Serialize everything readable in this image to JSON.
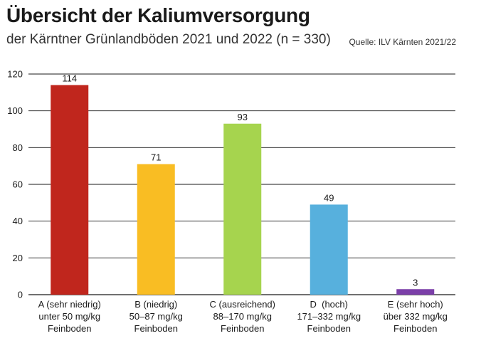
{
  "header": {
    "title": "Übersicht der Kaliumversorgung",
    "subtitle": "der Kärntner Grünlandböden 2021 und 2022 (n = 330)",
    "source": "Quelle: ILV Kärnten 2021/22"
  },
  "chart_data": {
    "type": "bar",
    "title": "Übersicht der Kaliumversorgung",
    "subtitle": "der Kärntner Grünlandböden 2021 und 2022 (n = 330)",
    "xlabel": "",
    "ylabel": "",
    "ylim": [
      0,
      120
    ],
    "yticks": [
      0,
      20,
      40,
      60,
      80,
      100,
      120
    ],
    "grid": true,
    "legend": "none",
    "categories": [
      [
        "A (sehr niedrig)",
        "unter 50 mg/kg",
        "Feinboden"
      ],
      [
        "B (niedrig)",
        "50–87 mg/kg",
        "Feinboden"
      ],
      [
        "C (ausreichend)",
        "88–170 mg/kg",
        "Feinboden"
      ],
      [
        "D  (hoch)",
        "171–332 mg/kg",
        "Feinboden"
      ],
      [
        "E (sehr hoch)",
        "über 332 mg/kg",
        "Feinboden"
      ]
    ],
    "values": [
      114,
      71,
      93,
      49,
      3
    ],
    "colors": [
      "#c0261d",
      "#f9bd23",
      "#a6d44e",
      "#57b0dd",
      "#7b3fa8"
    ]
  }
}
